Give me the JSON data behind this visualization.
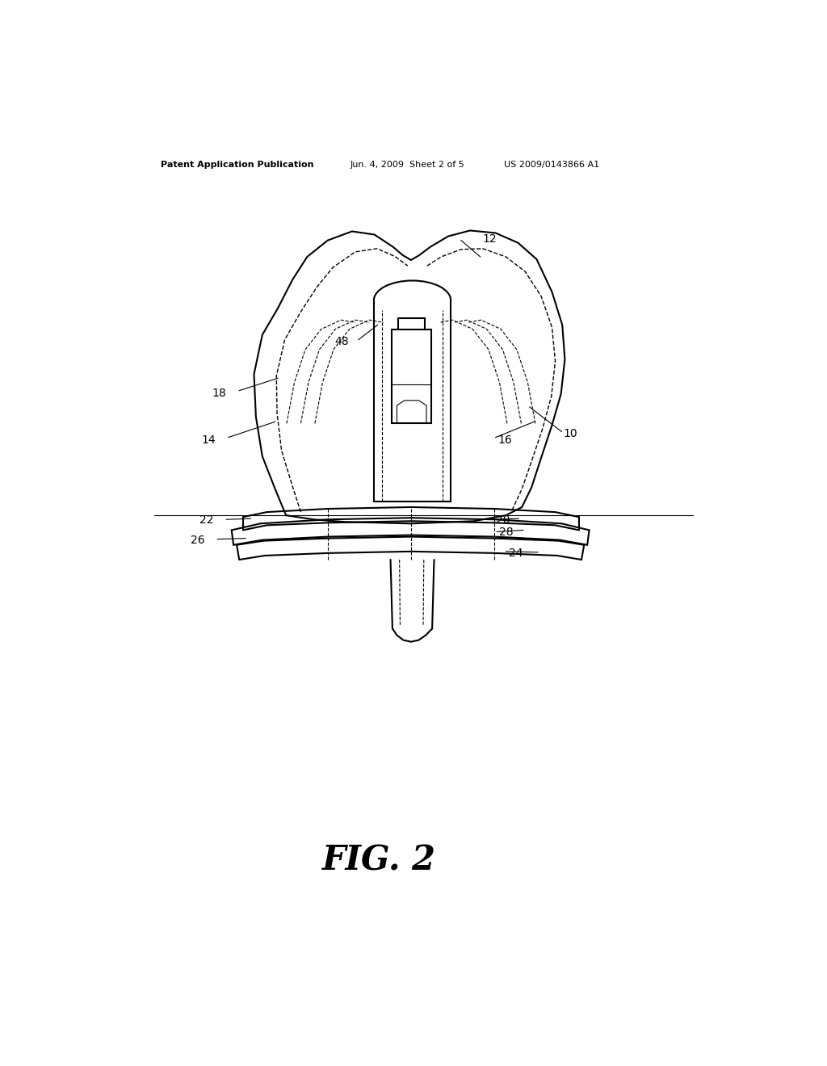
{
  "bg_color": "#ffffff",
  "line_color": "#000000",
  "header_left": "Patent Application Publication",
  "header_mid": "Jun. 4, 2009  Sheet 2 of 5",
  "header_right": "US 2009/0143866 A1",
  "figure_label": "FIG. 2",
  "lw_main": 1.5,
  "lw_thin": 0.8,
  "lw_inner": 1.0
}
